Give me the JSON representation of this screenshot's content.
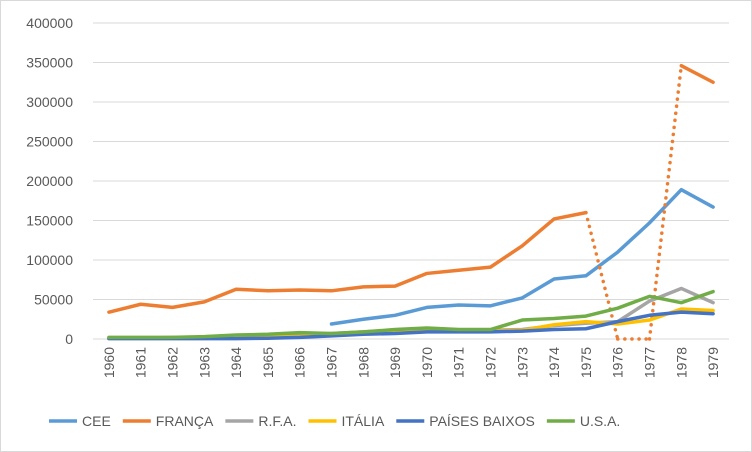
{
  "chart_data": {
    "type": "line",
    "title": "",
    "xlabel": "",
    "ylabel": "",
    "categories": [
      "1960",
      "1961",
      "1962",
      "1963",
      "1964",
      "1965",
      "1966",
      "1967",
      "1968",
      "1969",
      "1970",
      "1971",
      "1972",
      "1973",
      "1974",
      "1975",
      "1976",
      "1977",
      "1978",
      "1979"
    ],
    "ylim": [
      0,
      400000
    ],
    "yticks": [
      0,
      50000,
      100000,
      150000,
      200000,
      250000,
      300000,
      350000,
      400000
    ],
    "ytick_labels": [
      "0",
      "50000",
      "100000",
      "150000",
      "200000",
      "250000",
      "300000",
      "350000",
      "400000"
    ],
    "grid": true,
    "legend_position": "bottom",
    "series": [
      {
        "name": "CEE",
        "color": "#5b9bd5",
        "values": [
          null,
          null,
          null,
          null,
          null,
          null,
          null,
          19000,
          25000,
          30000,
          40000,
          43000,
          42000,
          52000,
          76000,
          80000,
          110000,
          147000,
          189000,
          167000
        ]
      },
      {
        "name": "FRANÇA",
        "color": "#ed7d31",
        "values": [
          34000,
          44000,
          40000,
          47000,
          63000,
          61000,
          62000,
          61000,
          66000,
          67000,
          83000,
          87000,
          91000,
          118000,
          152000,
          160000,
          0,
          0,
          346000,
          325000
        ],
        "dotted_segments": [
          [
            15,
            16
          ],
          [
            16,
            17
          ],
          [
            17,
            18
          ]
        ]
      },
      {
        "name": "R.F.A.",
        "color": "#a5a5a5",
        "values": [
          1000,
          1000,
          2000,
          2000,
          3000,
          4000,
          5000,
          7000,
          9000,
          11000,
          11000,
          11000,
          11000,
          12000,
          17000,
          20000,
          22000,
          48000,
          64000,
          46000
        ]
      },
      {
        "name": "ITÁLIA",
        "color": "#ffc000",
        "values": [
          1000,
          1000,
          1000,
          1000,
          2000,
          2000,
          3000,
          5000,
          7000,
          8000,
          10000,
          10000,
          10000,
          11000,
          18000,
          22000,
          19000,
          24000,
          38000,
          36000
        ]
      },
      {
        "name": "PAÍSES BAIXOS",
        "color": "#4472c4",
        "values": [
          500,
          500,
          500,
          500,
          500,
          1000,
          2000,
          4000,
          6000,
          7000,
          9000,
          9000,
          9000,
          10000,
          12000,
          13000,
          22000,
          30000,
          34000,
          32000
        ]
      },
      {
        "name": "U.S.A.",
        "color": "#70ad47",
        "values": [
          2000,
          2000,
          2000,
          3000,
          5000,
          6000,
          8000,
          7000,
          9000,
          12000,
          14000,
          12000,
          12000,
          24000,
          26000,
          29000,
          39000,
          54000,
          46000,
          60000
        ]
      }
    ]
  }
}
